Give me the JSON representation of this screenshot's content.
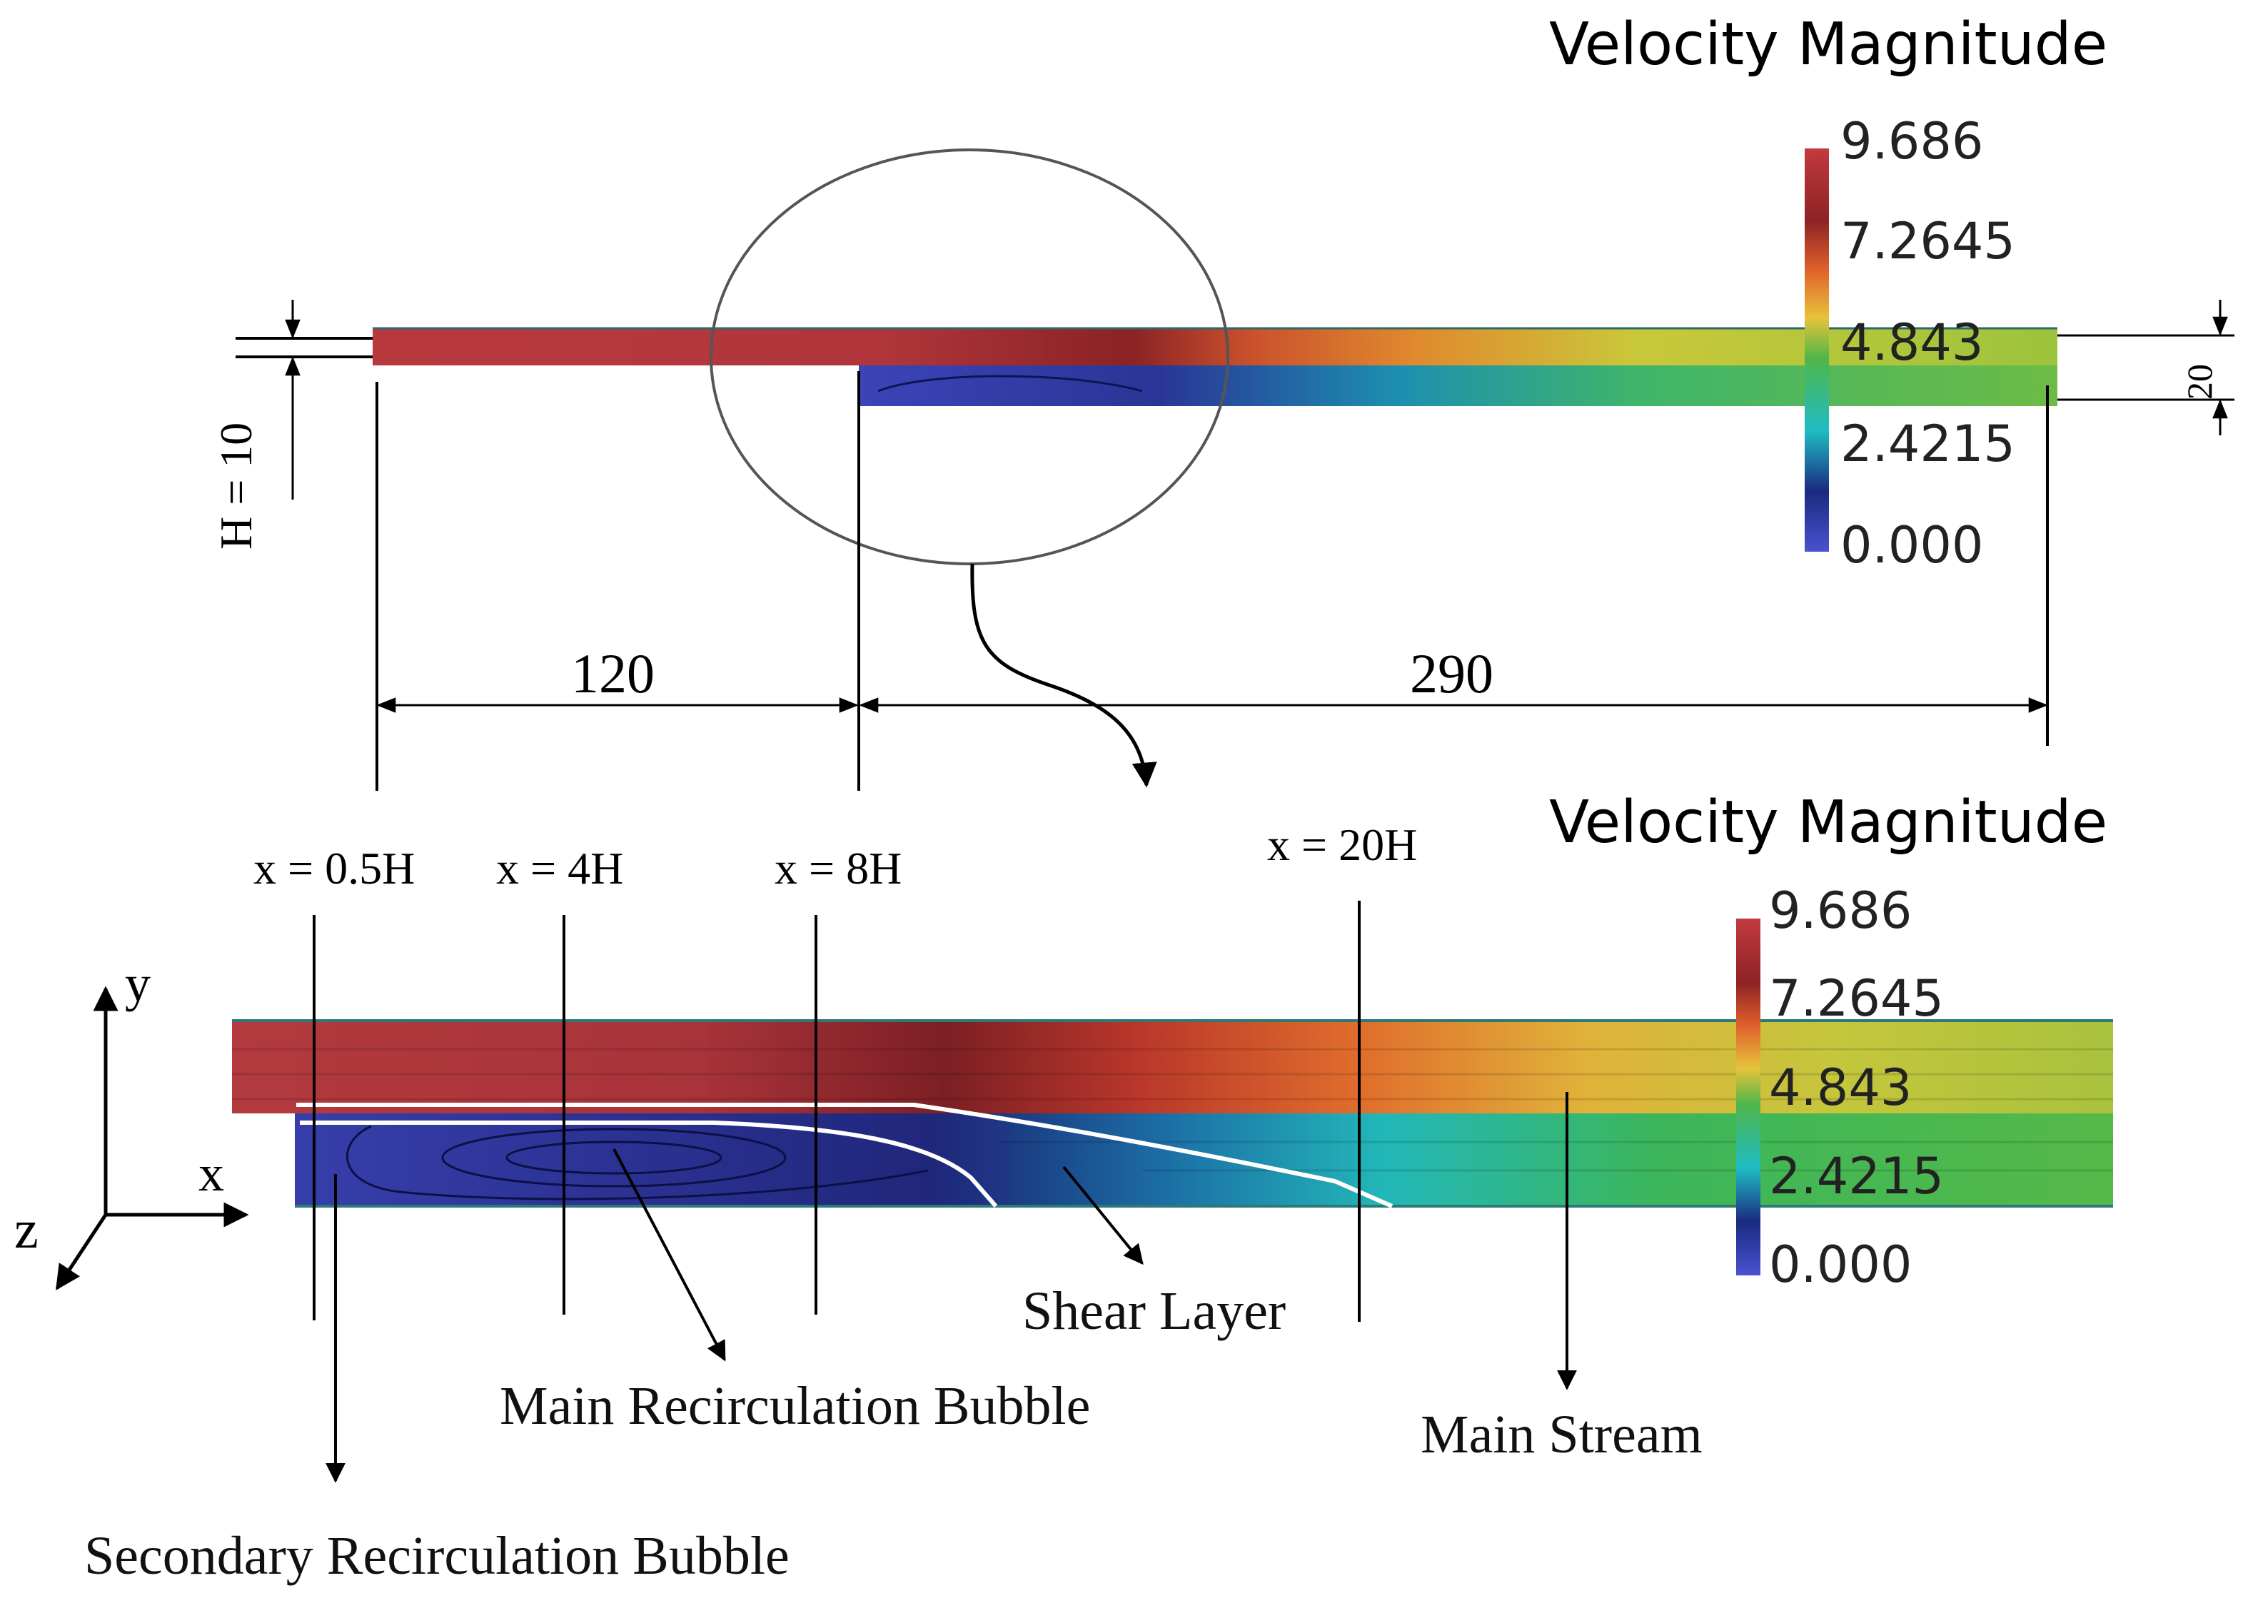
{
  "colors": {
    "red": "#b0363b",
    "dark_red": "#7a1f22",
    "orange": "#e8762e",
    "yellow": "#e0d23a",
    "green": "#52b748",
    "teal": "#1fbcc4",
    "blue": "#2e3a9c",
    "dark_blue": "#141a63",
    "bubble_blue": "#3b44b8"
  },
  "top_panel": {
    "colorbar_title": "Velocity Magnitude",
    "colorbar_ticks": [
      "9.686",
      "7.2645",
      "4.843",
      "2.4215",
      "0.000"
    ],
    "dimension_step_height": "H = 10",
    "dimension_channel_height": "20",
    "dimension_inlet_length": "120",
    "dimension_outlet_length": "290"
  },
  "bottom_panel": {
    "colorbar_title": "Velocity Magnitude",
    "colorbar_ticks": [
      "9.686",
      "7.2645",
      "4.843",
      "2.4215",
      "0.000"
    ],
    "stations": [
      "x = 0.5H",
      "x = 4H",
      "x = 8H",
      "x = 20H"
    ],
    "axes": {
      "y": "y",
      "x": "x",
      "z": "z"
    },
    "labels": {
      "shear_layer": "Shear Layer",
      "main_recirculation": "Main Recirculation Bubble",
      "main_stream": "Main Stream",
      "secondary_recirculation": "Secondary Recirculation Bubble"
    }
  }
}
